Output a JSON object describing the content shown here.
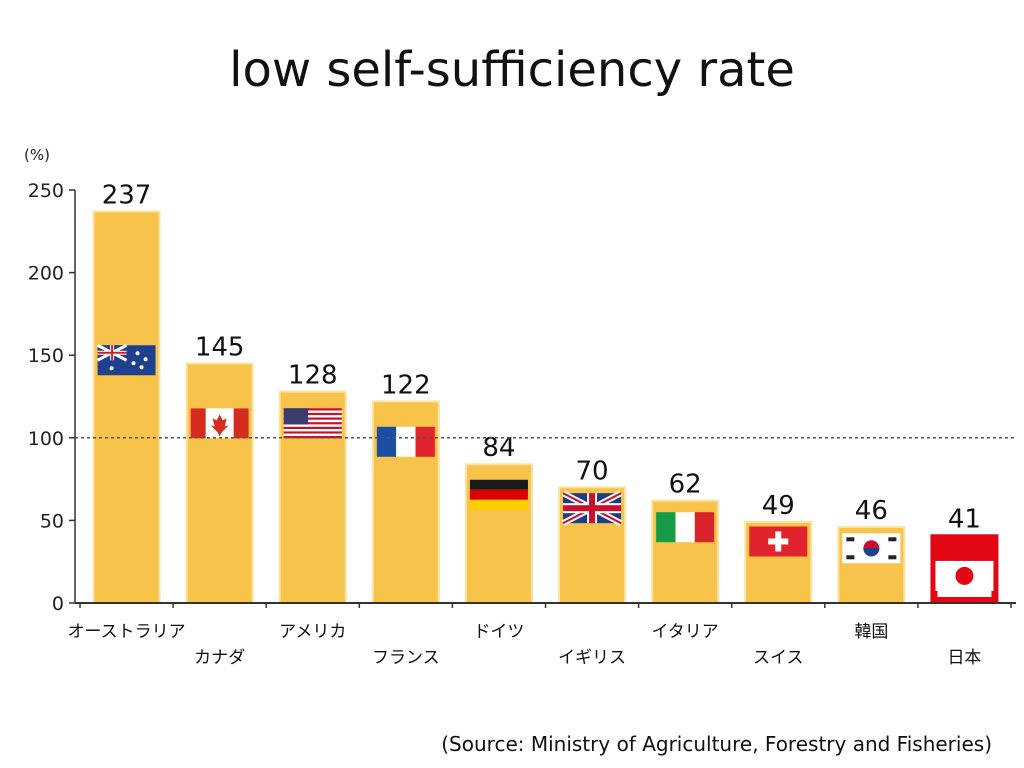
{
  "slide": {
    "title": "low self-sufficiency rate",
    "source": "(Source: Ministry of Agriculture, Forestry and Fisheries)"
  },
  "chart_data": {
    "type": "bar",
    "title": "low self-sufficiency rate",
    "ylabel": "(%)",
    "xlabel": "",
    "ylim": [
      0,
      250
    ],
    "yticks": [
      "0",
      "50",
      "100",
      "150",
      "200",
      "250"
    ],
    "reference_line": 100,
    "categories": [
      "オーストラリア",
      "カナダ",
      "アメリカ",
      "フランス",
      "ドイツ",
      "イギリス",
      "イタリア",
      "スイス",
      "韓国",
      "日本"
    ],
    "values": [
      237,
      145,
      128,
      122,
      84,
      70,
      62,
      49,
      46,
      41
    ],
    "data_labels": [
      "237",
      "145",
      "128",
      "122",
      "84",
      "70",
      "62",
      "49",
      "46",
      "41"
    ],
    "flags": [
      "australia-flag",
      "canada-flag",
      "usa-flag",
      "france-flag",
      "germany-flag",
      "uk-flag",
      "italy-flag",
      "switzerland-flag",
      "korea-flag",
      "japan-flag"
    ],
    "colors": {
      "bar": "#F7C34B",
      "bar_edge": "#FBE3A5",
      "highlight": "#E30613",
      "axis": "#333333"
    },
    "highlight_index": 9,
    "grid": false
  }
}
